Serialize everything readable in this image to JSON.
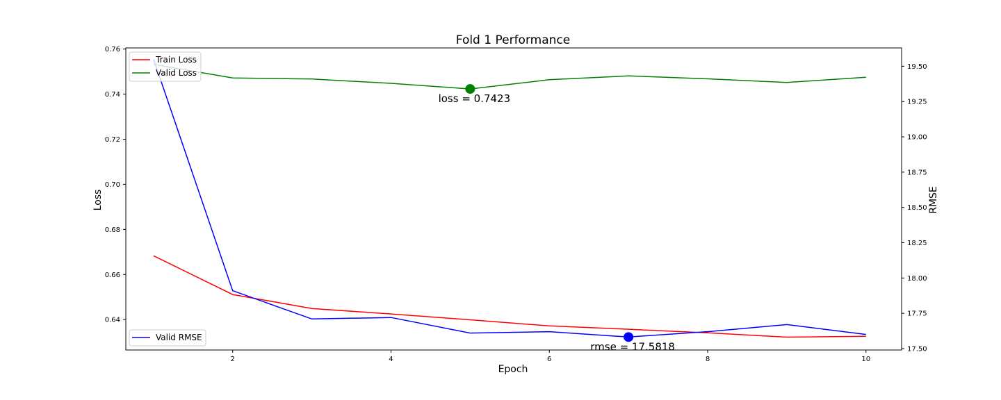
{
  "chart_data": {
    "type": "line",
    "title": "Fold 1 Performance",
    "xlabel": "Epoch",
    "ylabel_left": "Loss",
    "ylabel_right": "RMSE",
    "xlim": [
      0.65,
      10.45
    ],
    "ylim_left": [
      0.6265,
      0.7605
    ],
    "ylim_right": [
      17.49,
      19.63
    ],
    "x": [
      1,
      2,
      3,
      4,
      5,
      6,
      7,
      8,
      9,
      10
    ],
    "xticks": [
      2,
      4,
      6,
      8,
      10
    ],
    "yticks_left": [
      "0.64",
      "0.66",
      "0.68",
      "0.70",
      "0.72",
      "0.74",
      "0.76"
    ],
    "yticks_right": [
      "17.50",
      "17.75",
      "18.00",
      "18.25",
      "18.50",
      "18.75",
      "19.00",
      "19.25",
      "19.50"
    ],
    "series": [
      {
        "name": "Train Loss",
        "axis": "left",
        "color": "#ff0000",
        "values": [
          0.6683,
          0.6511,
          0.6449,
          0.6425,
          0.6399,
          0.6372,
          0.6357,
          0.6341,
          0.6322,
          0.6326
        ]
      },
      {
        "name": "Valid Loss",
        "axis": "left",
        "color": "#008000",
        "values": [
          0.7532,
          0.7472,
          0.7467,
          0.7448,
          0.7423,
          0.7464,
          0.7481,
          0.7468,
          0.7452,
          0.7475
        ]
      },
      {
        "name": "Valid RMSE",
        "axis": "right",
        "color": "#0000ff",
        "values": [
          19.55,
          17.91,
          17.71,
          17.72,
          17.61,
          17.62,
          17.5818,
          17.62,
          17.67,
          17.6
        ]
      }
    ],
    "annotations": [
      {
        "text": "loss = 0.7423",
        "x": 5,
        "y": 0.7423,
        "axis": "left",
        "color": "#008000"
      },
      {
        "text": "rmse = 17.5818",
        "x": 7,
        "y": 17.5818,
        "axis": "right",
        "color": "#0000ff"
      }
    ],
    "legend_left": {
      "placement": "upper-left",
      "entries": [
        "Train Loss",
        "Valid Loss"
      ]
    },
    "legend_right": {
      "placement": "lower-left",
      "entries": [
        "Valid RMSE"
      ]
    },
    "grid": false
  }
}
